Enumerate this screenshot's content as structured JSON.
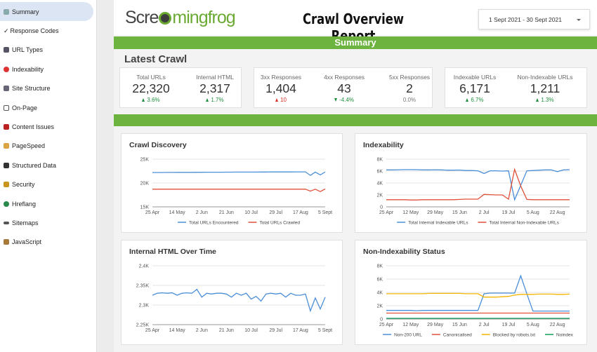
{
  "sidebar": {
    "items": [
      "Summary",
      "Response Codes",
      "URL Types",
      "Indexability",
      "Site Structure",
      "On-Page",
      "Content Issues",
      "PageSpeed",
      "Structured Data",
      "Security",
      "Hreflang",
      "Sitemaps",
      "JavaScript"
    ]
  },
  "header": {
    "logo_parts": [
      "Scre",
      "mingfrog"
    ],
    "title": "Crawl Overview Report",
    "date_range": "1 Sept 2021 - 30 Sept 2021"
  },
  "section_banner": "Summary",
  "latest_crawl": {
    "title": "Latest Crawl",
    "kpis": [
      {
        "label": "Total URLs",
        "value": "22,320",
        "change": "3.6%"
      },
      {
        "label": "Internal HTML",
        "value": "2,317",
        "change": "1.7%"
      },
      {
        "label": "3xx Responses",
        "value": "1,404",
        "change": "10"
      },
      {
        "label": "4xx Responses",
        "value": "43",
        "change": "-4.4%"
      },
      {
        "label": "5xx Responses",
        "value": "2",
        "change": "0.0%"
      },
      {
        "label": "Indexable URLs",
        "value": "6,171",
        "change": "6.7%"
      },
      {
        "label": "Non-Indexable URLs",
        "value": "1,211",
        "change": "1.3%"
      }
    ]
  },
  "chart_data": [
    {
      "type": "line",
      "title": "Crawl Discovery",
      "categories": [
        "25 Apr",
        null,
        null,
        null,
        null,
        "14 May",
        null,
        null,
        null,
        null,
        "2 Jun",
        null,
        null,
        null,
        null,
        "21 Jun",
        null,
        null,
        null,
        null,
        "10 Jul",
        null,
        null,
        null,
        null,
        "29 Jul",
        null,
        null,
        null,
        null,
        "17 Aug",
        null,
        null,
        null,
        null,
        "5 Sept"
      ],
      "ylim": [
        15000,
        25000
      ],
      "yticks": [
        {
          "value": 15000,
          "label": "15K"
        },
        {
          "value": 20000,
          "label": "20K"
        },
        {
          "value": 25000,
          "label": "25K"
        }
      ],
      "grid": true,
      "series": [
        {
          "name": "Total URLs Encountered",
          "color": "#4a8fd8",
          "values": [
            22200,
            22200,
            22210,
            22220,
            22220,
            22230,
            22230,
            22240,
            22240,
            22250,
            22250,
            22260,
            22260,
            22270,
            22270,
            22280,
            22280,
            22290,
            22290,
            22300,
            22300,
            22300,
            22310,
            22310,
            22320,
            22320,
            22330,
            22330,
            22330,
            22340,
            22340,
            22340,
            21600,
            22300,
            21700,
            22320
          ]
        },
        {
          "name": "Total URLs Crawled",
          "color": "#e0503a",
          "values": [
            18700,
            18700,
            18700,
            18700,
            18700,
            18700,
            18700,
            18700,
            18700,
            18700,
            18700,
            18700,
            18700,
            18700,
            18700,
            18700,
            18700,
            18700,
            18700,
            18700,
            18700,
            18700,
            18700,
            18700,
            18700,
            18700,
            18700,
            18700,
            18700,
            18700,
            18700,
            18700,
            18300,
            18700,
            18200,
            18750
          ]
        }
      ]
    },
    {
      "type": "line",
      "title": "Indexability",
      "categories": [
        "25 Apr",
        null,
        null,
        null,
        "12 May",
        null,
        null,
        null,
        "29 May",
        null,
        null,
        null,
        "15 Jun",
        null,
        null,
        null,
        "2 Jul",
        null,
        null,
        null,
        "19 Jul",
        null,
        null,
        null,
        "5 Aug",
        null,
        null,
        null,
        "22 Aug",
        null,
        null
      ],
      "ylim": [
        0,
        8000
      ],
      "yticks": [
        0,
        {
          "value": 2000,
          "label": "2K"
        },
        {
          "value": 4000,
          "label": "4K"
        },
        {
          "value": 6000,
          "label": "6K"
        },
        {
          "value": 8000,
          "label": "8K"
        }
      ],
      "grid": true,
      "series": [
        {
          "name": "Total Internal Indexable URLs",
          "color": "#4a8fd8",
          "values": [
            6200,
            6200,
            6220,
            6250,
            6250,
            6230,
            6200,
            6200,
            6220,
            6200,
            6150,
            6150,
            6180,
            6100,
            6100,
            6050,
            5600,
            6050,
            6050,
            6000,
            6050,
            1200,
            3600,
            6050,
            6100,
            6150,
            6200,
            6200,
            5900,
            6200,
            6250
          ]
        },
        {
          "name": "Total Internal Non-Indexable URLs",
          "color": "#e0503a",
          "values": [
            1200,
            1200,
            1200,
            1200,
            1150,
            1150,
            1200,
            1200,
            1200,
            1200,
            1200,
            1200,
            1250,
            1300,
            1300,
            1300,
            2100,
            2050,
            2000,
            2000,
            1300,
            6300,
            3500,
            1250,
            1200,
            1200,
            1200,
            1200,
            1200,
            1200,
            1200
          ]
        }
      ]
    },
    {
      "type": "line",
      "title": "Internal HTML Over Time",
      "categories": [
        "25 Apr",
        null,
        null,
        null,
        null,
        "14 May",
        null,
        null,
        null,
        null,
        "2 Jun",
        null,
        null,
        null,
        null,
        "21 Jun",
        null,
        null,
        null,
        null,
        "10 Jul",
        null,
        null,
        null,
        null,
        "29 Jul",
        null,
        null,
        null,
        null,
        "17 Aug",
        null,
        null,
        null,
        null,
        "5 Sept"
      ],
      "ylim": [
        2250,
        2400
      ],
      "yticks": [
        {
          "value": 2250,
          "label": "2.25K"
        },
        {
          "value": 2300,
          "label": "2.3K"
        },
        {
          "value": 2350,
          "label": "2.35K"
        },
        {
          "value": 2400,
          "label": "2.4K"
        }
      ],
      "grid": true,
      "color": "#4a8fd8",
      "values": [
        2325,
        2330,
        2331,
        2330,
        2331,
        2325,
        2330,
        2331,
        2330,
        2340,
        2320,
        2330,
        2328,
        2330,
        2330,
        2328,
        2320,
        2330,
        2325,
        2330,
        2315,
        2322,
        2310,
        2328,
        2330,
        2328,
        2330,
        2320,
        2330,
        2325,
        2325,
        2328,
        2285,
        2318,
        2290,
        2320
      ]
    },
    {
      "type": "line",
      "title": "Non-Indexability Status",
      "categories": [
        "25 Apr",
        null,
        null,
        null,
        "12 May",
        null,
        null,
        null,
        "29 May",
        null,
        null,
        null,
        "15 Jun",
        null,
        null,
        null,
        "2 Jul",
        null,
        null,
        null,
        "19 Jul",
        null,
        null,
        null,
        "5 Aug",
        null,
        null,
        null,
        "22 Aug",
        null,
        null
      ],
      "ylim": [
        0,
        8000
      ],
      "yticks": [
        0,
        {
          "value": 2000,
          "label": "2K"
        },
        {
          "value": 4000,
          "label": "4K"
        },
        {
          "value": 6000,
          "label": "6K"
        },
        {
          "value": 8000,
          "label": "8K"
        }
      ],
      "grid": true,
      "series": [
        {
          "name": "Non-200 URL",
          "color": "#4a8fd8",
          "values": [
            1300,
            1300,
            1300,
            1300,
            1300,
            1250,
            1300,
            1300,
            1300,
            1300,
            1300,
            1300,
            1300,
            1300,
            1300,
            1300,
            3800,
            3900,
            3900,
            3900,
            3900,
            3900,
            6500,
            3800,
            1200,
            1200,
            1200,
            1200,
            1200,
            1200,
            1200
          ]
        },
        {
          "name": "Canonicalised",
          "color": "#e0503a",
          "values": [
            900,
            900,
            900,
            900,
            900,
            900,
            900,
            900,
            900,
            900,
            900,
            900,
            900,
            900,
            900,
            900,
            900,
            900,
            900,
            900,
            900,
            900,
            900,
            900,
            900,
            900,
            900,
            900,
            900,
            900,
            900
          ]
        },
        {
          "name": "Blocked by robots.txt",
          "color": "#f4b400",
          "values": [
            3800,
            3800,
            3800,
            3800,
            3800,
            3800,
            3800,
            3850,
            3850,
            3850,
            3850,
            3850,
            3850,
            3800,
            3800,
            3800,
            3300,
            3300,
            3300,
            3350,
            3400,
            3600,
            3700,
            3700,
            3700,
            3750,
            3750,
            3750,
            3700,
            3700,
            3750
          ]
        },
        {
          "name": "Noindex",
          "color": "#0f9d58",
          "values": [
            100,
            100,
            100,
            100,
            100,
            100,
            100,
            100,
            100,
            100,
            100,
            100,
            100,
            100,
            100,
            100,
            100,
            100,
            100,
            100,
            100,
            100,
            100,
            100,
            100,
            100,
            100,
            100,
            100,
            100,
            100
          ]
        }
      ]
    }
  ]
}
